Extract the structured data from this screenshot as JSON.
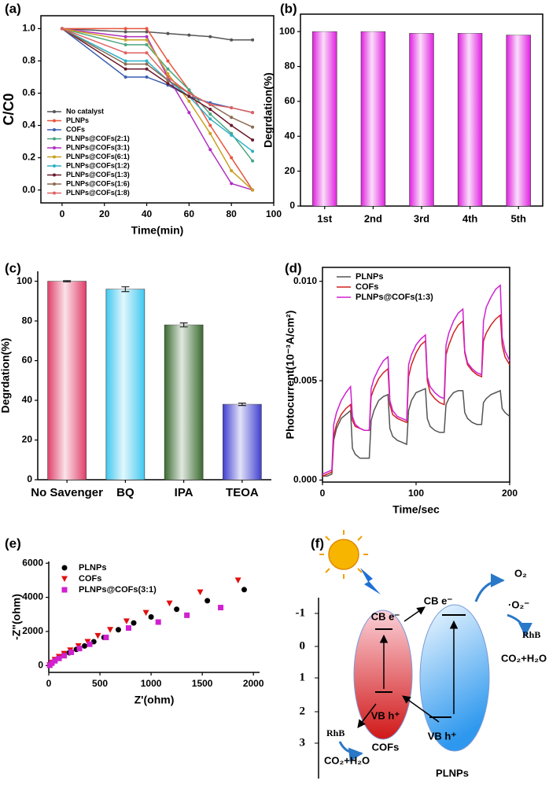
{
  "chart_data": [
    {
      "type": "line",
      "panel": "(a)",
      "xlabel": "Time(min)",
      "ylabel": "C/C0",
      "x": [
        0,
        30,
        40,
        50,
        60,
        70,
        80,
        90
      ],
      "xlim": [
        -10,
        100
      ],
      "xticks": [
        0,
        20,
        40,
        60,
        80,
        100
      ],
      "ylim": [
        -0.08,
        1.08
      ],
      "yticks": [
        {
          "value": 0,
          "label": "0.0"
        },
        0.2,
        0.4,
        0.6,
        0.8,
        {
          "value": 1,
          "label": "1.0"
        }
      ],
      "marker": "circle",
      "legend": "center left",
      "series": [
        {
          "name": "No catalyst",
          "color": "#555555",
          "values": [
            1.0,
            0.98,
            0.98,
            0.97,
            0.96,
            0.95,
            0.93,
            0.93
          ]
        },
        {
          "name": "PLNPs",
          "color": "#e8553d",
          "values": [
            1.0,
            1.0,
            1.0,
            0.8,
            0.62,
            0.4,
            0.2,
            0.0
          ]
        },
        {
          "name": "COFs",
          "color": "#3c5fb0",
          "values": [
            1.0,
            0.7,
            0.7,
            0.65,
            0.58,
            0.54,
            0.51,
            0.48
          ]
        },
        {
          "name": "PLNPs@COFs(2:1)",
          "color": "#4aa680",
          "values": [
            1.0,
            0.9,
            0.9,
            0.75,
            0.62,
            0.47,
            0.35,
            0.18
          ]
        },
        {
          "name": "PLNPs@COFs(3:1)",
          "color": "#b030c0",
          "values": [
            1.0,
            0.95,
            0.95,
            0.7,
            0.48,
            0.25,
            0.04,
            0.0
          ]
        },
        {
          "name": "PLNPs@COFs(6:1)",
          "color": "#c8a020",
          "values": [
            1.0,
            0.93,
            0.93,
            0.72,
            0.55,
            0.35,
            0.12,
            0.0
          ]
        },
        {
          "name": "PLNPs@COFs(1:2)",
          "color": "#30b0c8",
          "values": [
            1.0,
            0.8,
            0.8,
            0.68,
            0.58,
            0.44,
            0.34,
            0.24
          ]
        },
        {
          "name": "PLNPs@COFs(1:3)",
          "color": "#6a1a2a",
          "values": [
            1.0,
            0.75,
            0.75,
            0.66,
            0.58,
            0.5,
            0.4,
            0.31
          ]
        },
        {
          "name": "PLNPs@COFs(1:6)",
          "color": "#8a6a50",
          "values": [
            1.0,
            0.78,
            0.78,
            0.68,
            0.6,
            0.53,
            0.45,
            0.39
          ]
        },
        {
          "name": "PLNPs@COFs(1:8)",
          "color": "#e06060",
          "values": [
            1.0,
            0.85,
            0.85,
            0.7,
            0.6,
            0.53,
            0.51,
            0.48
          ]
        }
      ]
    },
    {
      "type": "bar",
      "panel": "(b)",
      "ylabel": "Degrdation(%)",
      "categories": [
        "1st",
        "2nd",
        "3rd",
        "4th",
        "5th"
      ],
      "values": [
        100,
        100,
        99,
        99,
        98
      ],
      "color": "#e020e0",
      "ylim": [
        0,
        110
      ],
      "yticks": [
        0,
        20,
        40,
        60,
        80,
        100
      ]
    },
    {
      "type": "bar",
      "panel": "(c)",
      "ylabel": "Degrdation(%)",
      "categories": [
        "No Savenger",
        "BQ",
        "IPA",
        "TEOA"
      ],
      "values": [
        100,
        96,
        78,
        38
      ],
      "errors": [
        0.3,
        1.2,
        1.0,
        0.6
      ],
      "colors": [
        "#e0406a",
        "#40c8f0",
        "#3a6a30",
        "#4040d0"
      ],
      "ylim": [
        0,
        105
      ],
      "yticks": [
        0,
        20,
        40,
        60,
        80,
        100
      ]
    },
    {
      "type": "line",
      "panel": "(d)",
      "xlabel": "Time/sec",
      "ylabel": "Photocurrent(10⁻³A/cm²)",
      "x": [
        0,
        5,
        10,
        12,
        15,
        20,
        25,
        30,
        32,
        35,
        40,
        45,
        50,
        52,
        55,
        60,
        65,
        70,
        72,
        75,
        80,
        85,
        90,
        92,
        95,
        100,
        105,
        110,
        112,
        115,
        120,
        125,
        130,
        132,
        135,
        140,
        145,
        150,
        152,
        155,
        160,
        165,
        170,
        172,
        175,
        180,
        185,
        190,
        192,
        195,
        200
      ],
      "xlim": [
        0,
        200
      ],
      "xticks": [
        0,
        100,
        200
      ],
      "ylim": [
        -0.0001,
        0.0107
      ],
      "yticks": [
        {
          "value": 0,
          "label": "0.000"
        },
        {
          "value": 0.005,
          "label": "0.005"
        },
        {
          "value": 0.01,
          "label": "0.010"
        }
      ],
      "legend": "upper left",
      "series": [
        {
          "name": "PLNPs",
          "color": "#555555",
          "values": [
            0.0002,
            0.0002,
            0.0003,
            0.002,
            0.0026,
            0.0031,
            0.0033,
            0.0035,
            0.0016,
            0.0013,
            0.0011,
            0.0011,
            0.0011,
            0.003,
            0.0035,
            0.004,
            0.0042,
            0.0043,
            0.0026,
            0.0022,
            0.002,
            0.0019,
            0.0018,
            0.0035,
            0.004,
            0.0044,
            0.0045,
            0.0046,
            0.0031,
            0.0027,
            0.0025,
            0.0024,
            0.0024,
            0.0038,
            0.0041,
            0.0044,
            0.0045,
            0.0045,
            0.0034,
            0.0031,
            0.0029,
            0.0028,
            0.0028,
            0.0039,
            0.0041,
            0.0043,
            0.0044,
            0.0045,
            0.0036,
            0.0034,
            0.0032
          ]
        },
        {
          "name": "COFs",
          "color": "#d02020",
          "values": [
            0.0002,
            0.0003,
            0.0004,
            0.0022,
            0.0028,
            0.0033,
            0.0036,
            0.0038,
            0.003,
            0.0027,
            0.0026,
            0.0025,
            0.0025,
            0.0042,
            0.0046,
            0.0051,
            0.0054,
            0.0056,
            0.0038,
            0.0033,
            0.0031,
            0.003,
            0.0029,
            0.0052,
            0.0058,
            0.0064,
            0.0068,
            0.007,
            0.005,
            0.0044,
            0.0041,
            0.0039,
            0.0038,
            0.0063,
            0.0068,
            0.0074,
            0.0078,
            0.008,
            0.0064,
            0.0058,
            0.0055,
            0.0053,
            0.0052,
            0.007,
            0.0074,
            0.0078,
            0.0081,
            0.0083,
            0.0068,
            0.0062,
            0.0058
          ]
        },
        {
          "name": "PLNPs@COFs(1:3)",
          "color": "#d020d0",
          "values": [
            0.0003,
            0.0004,
            0.0005,
            0.0028,
            0.0034,
            0.004,
            0.0044,
            0.0047,
            0.0032,
            0.0028,
            0.0026,
            0.0025,
            0.0025,
            0.0046,
            0.0051,
            0.0056,
            0.006,
            0.0062,
            0.004,
            0.0035,
            0.0032,
            0.0031,
            0.003,
            0.0058,
            0.0063,
            0.0068,
            0.0071,
            0.0073,
            0.0052,
            0.0047,
            0.0044,
            0.0042,
            0.0041,
            0.0068,
            0.0074,
            0.008,
            0.0084,
            0.0086,
            0.0065,
            0.0059,
            0.0056,
            0.0054,
            0.0053,
            0.008,
            0.0087,
            0.0092,
            0.0096,
            0.0098,
            0.0072,
            0.0065,
            0.006
          ]
        }
      ]
    },
    {
      "type": "scatter",
      "panel": "(e)",
      "xlabel": "Z'(ohm)",
      "ylabel": "-Z\"(ohm)",
      "xlim": [
        0,
        2060
      ],
      "xticks": [
        0,
        500,
        1000,
        1500,
        2000
      ],
      "ylim": [
        -400,
        6100
      ],
      "yticks": [
        0,
        2000,
        4000,
        6000
      ],
      "legend": "upper left",
      "series": [
        {
          "name": "PLNPs",
          "color": "#000000",
          "marker": "circle",
          "x": [
            10,
            30,
            60,
            100,
            150,
            200,
            270,
            350,
            440,
            540,
            680,
            830,
            1000,
            1250,
            1550,
            1910
          ],
          "values": [
            20,
            150,
            300,
            450,
            600,
            750,
            950,
            1150,
            1400,
            1650,
            2100,
            2500,
            2850,
            3300,
            3800,
            4450
          ]
        },
        {
          "name": "COFs",
          "color": "#e01010",
          "marker": "triangle-down",
          "x": [
            10,
            30,
            60,
            100,
            150,
            210,
            290,
            380,
            480,
            600,
            760,
            950,
            1180,
            1480,
            1850
          ],
          "values": [
            30,
            180,
            350,
            520,
            700,
            900,
            1150,
            1400,
            1750,
            2100,
            2600,
            3100,
            3650,
            4300,
            5000
          ]
        },
        {
          "name": "PLNPs@COFs(3:1)",
          "color": "#d020d0",
          "marker": "square",
          "x": [
            10,
            30,
            60,
            100,
            150,
            220,
            300,
            400,
            560,
            780,
            1070,
            1350,
            1680
          ],
          "values": [
            20,
            140,
            280,
            420,
            580,
            780,
            1000,
            1250,
            1650,
            2200,
            2550,
            2950,
            3400
          ]
        }
      ]
    }
  ],
  "diagram": {
    "panel": "(f)",
    "axis_ticks": [
      "-1",
      "0",
      "1",
      "2",
      "3"
    ],
    "cofs": {
      "label": "COFs",
      "cb": "CB e⁻",
      "vb": "VB h⁺"
    },
    "plnps": {
      "label": "PLNPs",
      "cb": "CB e⁻",
      "vb": "VB h⁺"
    },
    "o2": "O₂",
    "superoxide": "·O₂⁻",
    "rhb_right": "RhB",
    "product_right": "CO₂+H₂O",
    "rhb_left": "RhB",
    "product_left": "CO₂+H₂O"
  }
}
